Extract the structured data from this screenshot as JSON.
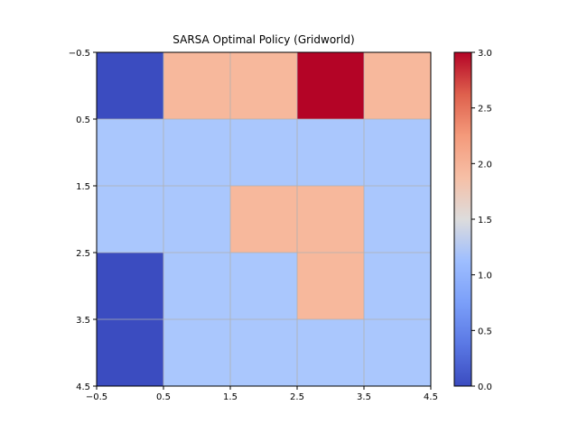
{
  "chart_data": {
    "type": "heatmap",
    "title": "SARSA Optimal Policy (Gridworld)",
    "xlabel": "",
    "ylabel": "",
    "rows": 5,
    "cols": 5,
    "values": [
      [
        0,
        2,
        2,
        3,
        2
      ],
      [
        1,
        1,
        1,
        1,
        1
      ],
      [
        1,
        1,
        2,
        2,
        1
      ],
      [
        0,
        1,
        1,
        2,
        1
      ],
      [
        0,
        1,
        1,
        1,
        1
      ]
    ],
    "xlim": [
      -0.5,
      4.5
    ],
    "ylim": [
      4.5,
      -0.5
    ],
    "x_ticks": [
      -0.5,
      0.5,
      1.5,
      2.5,
      3.5,
      4.5
    ],
    "x_tick_labels": [
      "−0.5",
      "0.5",
      "1.5",
      "2.5",
      "3.5",
      "4.5"
    ],
    "y_ticks": [
      -0.5,
      0.5,
      1.5,
      2.5,
      3.5,
      4.5
    ],
    "y_tick_labels": [
      "−0.5",
      "0.5",
      "1.5",
      "2.5",
      "3.5",
      "4.5"
    ],
    "grid": true,
    "colormap": "coolwarm",
    "colorbar": {
      "min": 0,
      "max": 3,
      "ticks": [
        0,
        0.5,
        1,
        1.5,
        2,
        2.5,
        3
      ],
      "tick_labels": [
        "0.0",
        "0.5",
        "1.0",
        "1.5",
        "2.0",
        "2.5",
        "3.0"
      ]
    },
    "value_colors": {
      "0": "#3b4cc0",
      "1": "#aac7fd",
      "2": "#f7b89c",
      "3": "#b40426"
    },
    "grid_color": "#b0b0b0"
  }
}
